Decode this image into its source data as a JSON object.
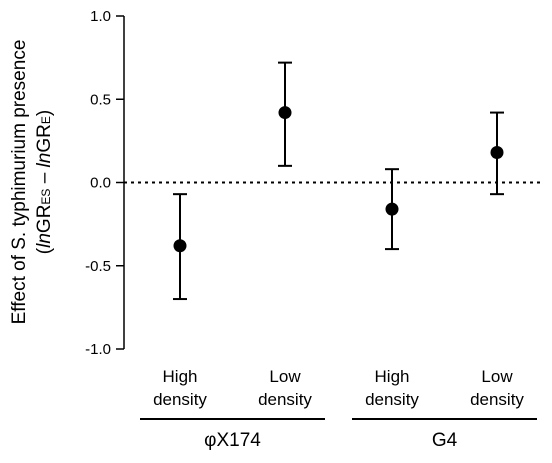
{
  "chart_data": {
    "type": "scatter",
    "ylabel_line1": "Effect of S. typhimurium presence",
    "ylabel_line2": {
      "open": "(",
      "ln1": "ln",
      "gr1": "GR",
      "sub1": "ES",
      "minus": " – ",
      "ln2": "ln",
      "gr2": "GR",
      "sub2": "E",
      "close": ")"
    },
    "ylim": [
      -1.0,
      1.0
    ],
    "yticks": [
      {
        "value": 1.0,
        "label": "1.0"
      },
      {
        "value": 0.5,
        "label": "0.5"
      },
      {
        "value": 0.0,
        "label": "0.0"
      },
      {
        "value": -0.5,
        "label": "-0.5"
      },
      {
        "value": -1.0,
        "label": "-1.0"
      }
    ],
    "reference_line": {
      "y": 0.0,
      "style": "dotted"
    },
    "categories": [
      {
        "line1": "High",
        "line2": "density"
      },
      {
        "line1": "Low",
        "line2": "density"
      },
      {
        "line1": "High",
        "line2": "density"
      },
      {
        "line1": "Low",
        "line2": "density"
      }
    ],
    "groups": [
      {
        "label": "φX174",
        "categories": [
          0,
          1
        ]
      },
      {
        "label": "G4",
        "categories": [
          2,
          3
        ]
      }
    ],
    "points": [
      {
        "category": 0,
        "y": -0.38,
        "err_low": -0.7,
        "err_high": -0.07
      },
      {
        "category": 1,
        "y": 0.42,
        "err_low": 0.1,
        "err_high": 0.72
      },
      {
        "category": 2,
        "y": -0.16,
        "err_low": -0.4,
        "err_high": 0.08
      },
      {
        "category": 3,
        "y": 0.18,
        "err_low": -0.07,
        "err_high": 0.42
      }
    ],
    "grid": false,
    "legend": "none"
  }
}
